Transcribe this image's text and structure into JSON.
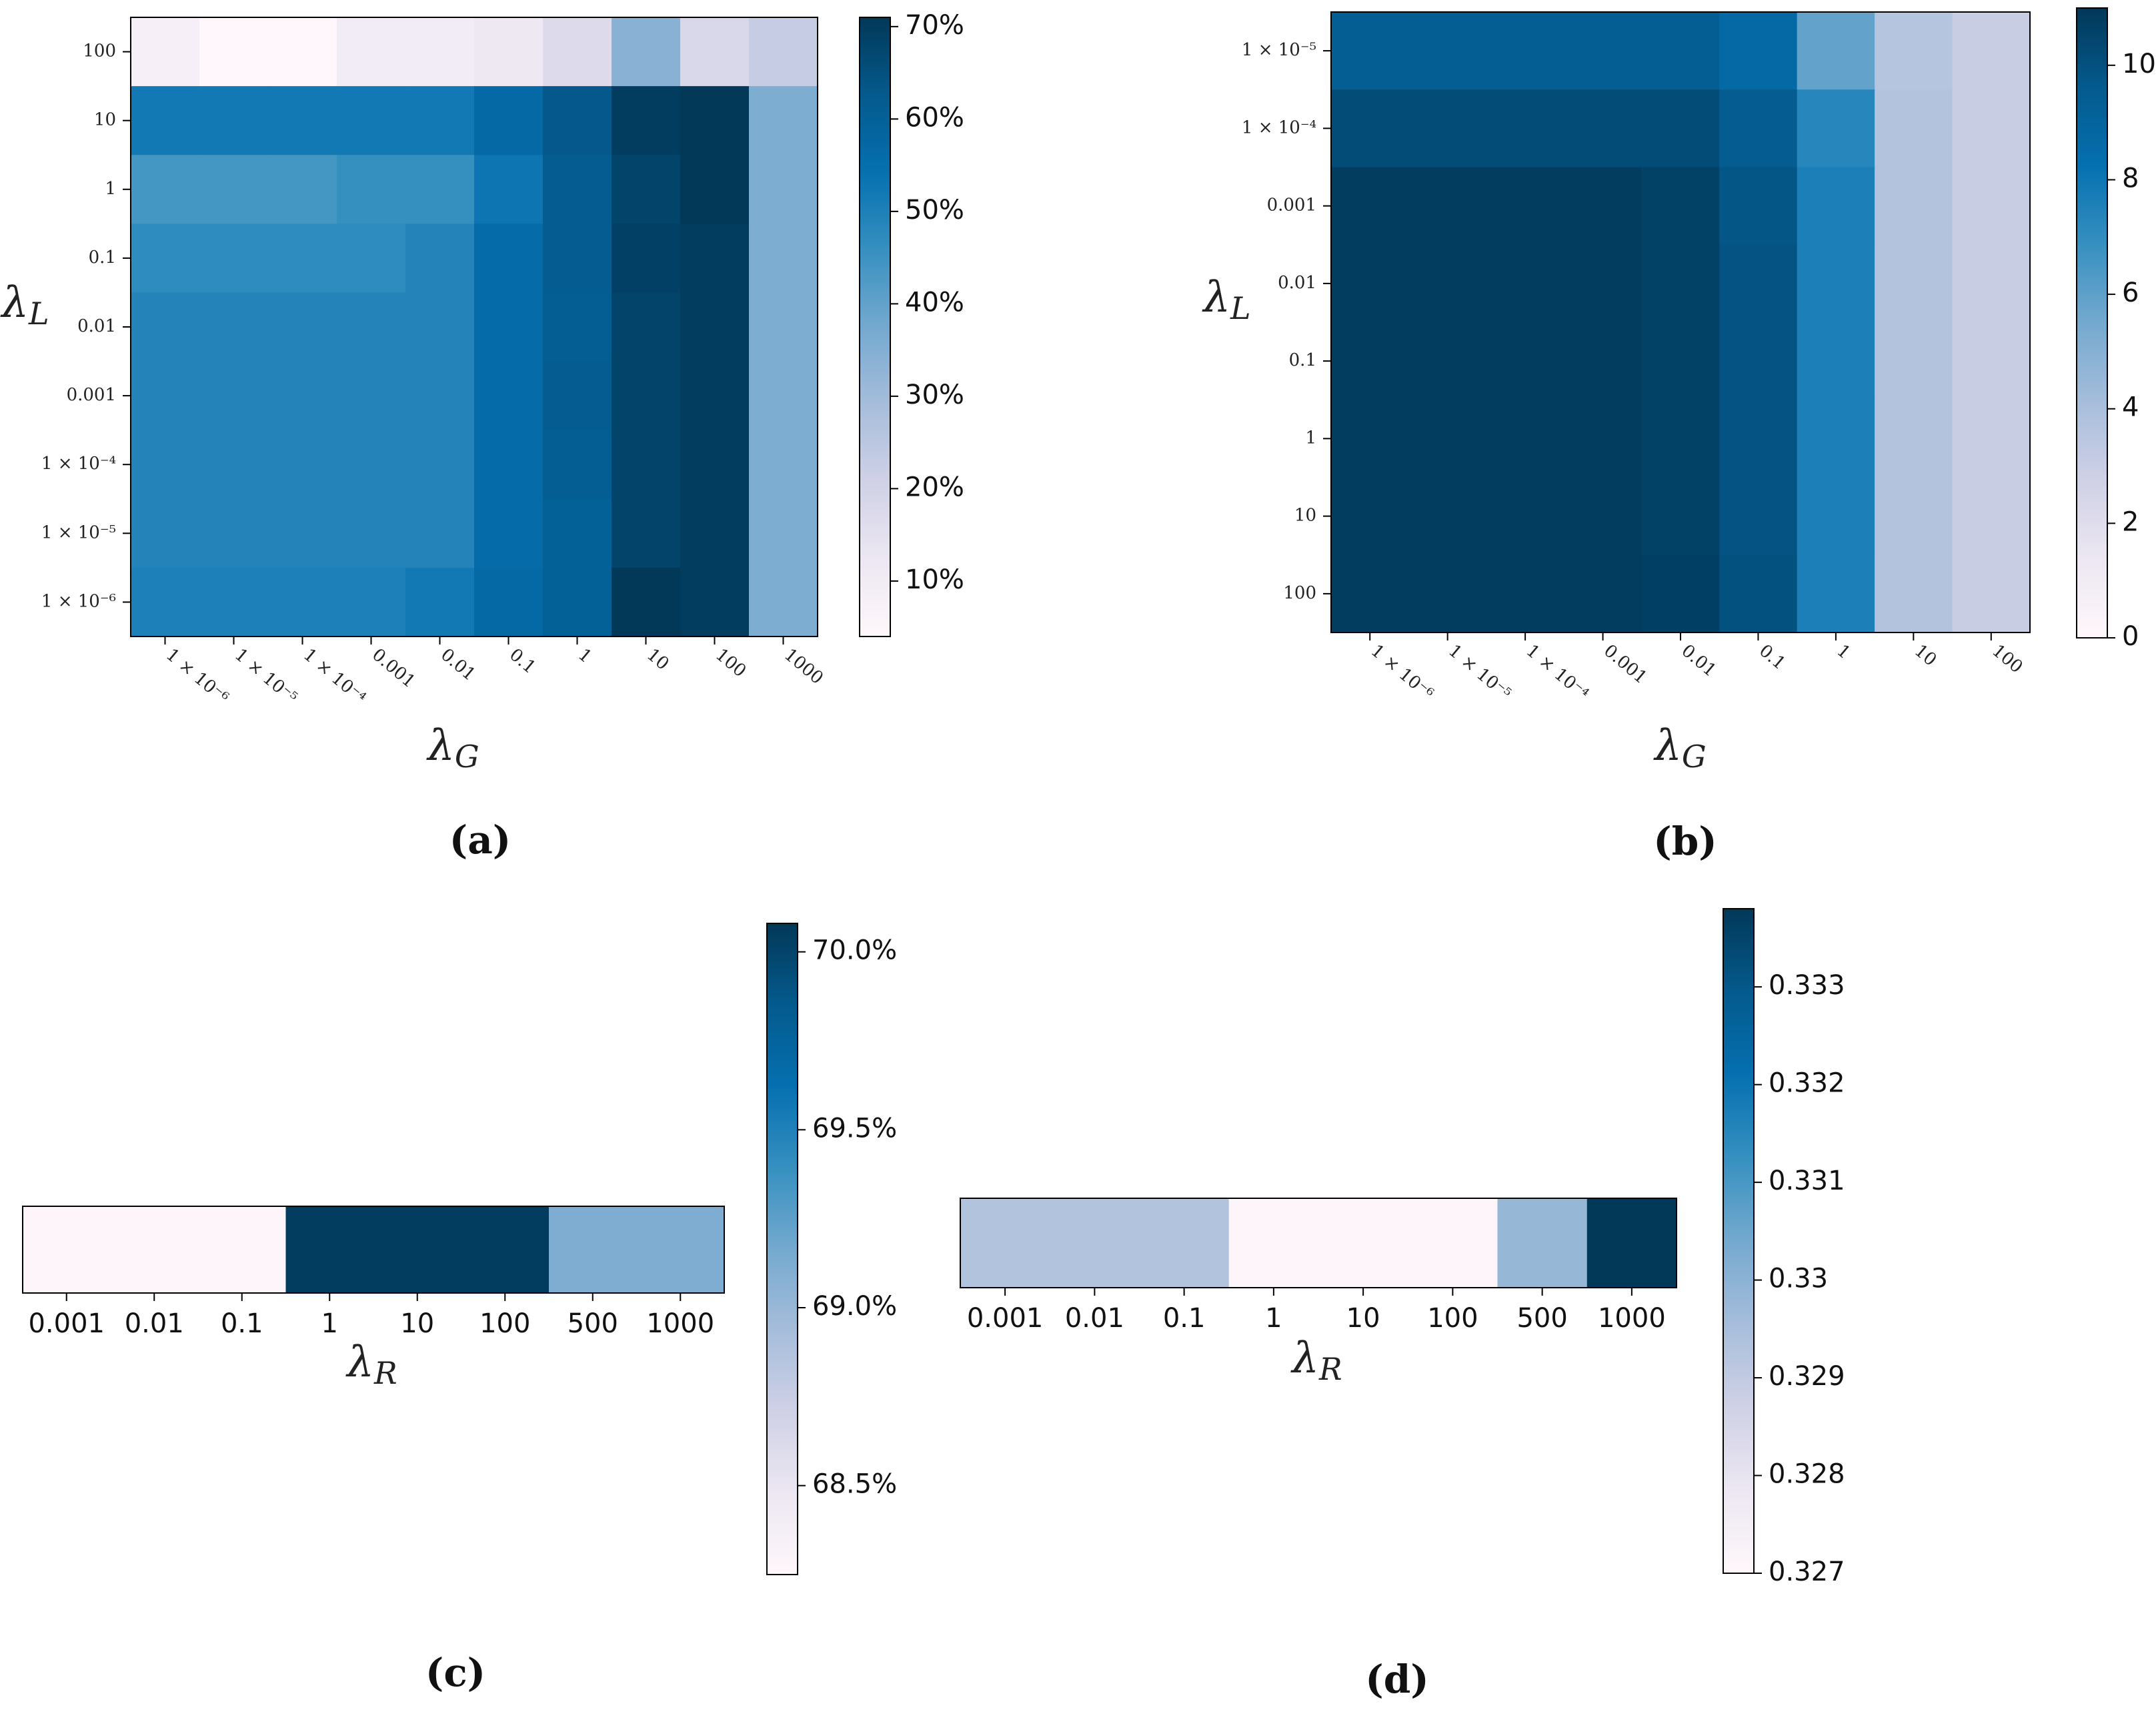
{
  "colormap": [
    "#fff7fb",
    "#ece7f2",
    "#d0d1e6",
    "#a6bddb",
    "#74a9cf",
    "#3690c0",
    "#0570b0",
    "#045a8d",
    "#023858"
  ],
  "chart_data": [
    {
      "id": "a",
      "type": "heatmap",
      "caption": "(a)",
      "xlabel": "λ",
      "xlabel_sub": "G",
      "ylabel": "λ",
      "ylabel_sub": "L",
      "x_categories": [
        "1 × 10⁻⁶",
        "1 × 10⁻⁵",
        "1 × 10⁻⁴",
        "0.001",
        "0.01",
        "0.1",
        "1",
        "10",
        "100",
        "1000"
      ],
      "y_categories": [
        "100",
        "10",
        "1",
        "0.1",
        "0.01",
        "0.001",
        "1 × 10⁻⁴",
        "1 × 10⁻⁵",
        "1 × 10⁻⁶"
      ],
      "values": [
        [
          8,
          4,
          4,
          10,
          10,
          12,
          17,
          34,
          18,
          23
        ],
        [
          52,
          52,
          52,
          52,
          52,
          57,
          63,
          70,
          71,
          36
        ],
        [
          44,
          44,
          44,
          46,
          46,
          53,
          62,
          68,
          71,
          36
        ],
        [
          47,
          47,
          47,
          47,
          49,
          56,
          62,
          69,
          70,
          36
        ],
        [
          49,
          49,
          49,
          49,
          49,
          56,
          61,
          68,
          70,
          36
        ],
        [
          49,
          49,
          49,
          49,
          49,
          56,
          62,
          68,
          70,
          36
        ],
        [
          49,
          49,
          49,
          49,
          49,
          56,
          61,
          68,
          70,
          36
        ],
        [
          49,
          49,
          49,
          49,
          49,
          56,
          60,
          68,
          70,
          36
        ],
        [
          50,
          50,
          50,
          50,
          52,
          57,
          60,
          71,
          70,
          36
        ]
      ],
      "vmin": 4,
      "vmax": 71,
      "colorbar_ticks": [
        10,
        20,
        30,
        40,
        50,
        60,
        70
      ],
      "colorbar_labels": [
        "10%",
        "20%",
        "30%",
        "40%",
        "50%",
        "60%",
        "70%"
      ]
    },
    {
      "id": "b",
      "type": "heatmap",
      "caption": "(b)",
      "xlabel": "λ",
      "xlabel_sub": "G",
      "ylabel": "λ",
      "ylabel_sub": "L",
      "x_categories": [
        "1 × 10⁻⁶",
        "1 × 10⁻⁵",
        "1 × 10⁻⁴",
        "0.001",
        "0.01",
        "0.1",
        "1",
        "10",
        "100"
      ],
      "y_categories": [
        "1 × 10⁻⁵",
        "1 × 10⁻⁴",
        "0.001",
        "0.01",
        "0.1",
        "1",
        "10",
        "100"
      ],
      "values": [
        [
          9.4,
          9.4,
          9.4,
          9.4,
          9.4,
          8.7,
          5.9,
          3.6,
          3.0
        ],
        [
          10.2,
          10.2,
          10.2,
          10.2,
          10.2,
          9.5,
          7.3,
          3.7,
          3.0
        ],
        [
          10.8,
          10.8,
          10.8,
          10.8,
          10.6,
          9.8,
          7.6,
          3.7,
          3.0
        ],
        [
          10.8,
          10.8,
          10.8,
          10.8,
          10.6,
          9.9,
          7.6,
          3.7,
          3.0
        ],
        [
          10.8,
          10.8,
          10.8,
          10.8,
          10.6,
          9.9,
          7.6,
          3.7,
          3.0
        ],
        [
          10.8,
          10.8,
          10.8,
          10.8,
          10.6,
          9.9,
          7.6,
          3.7,
          3.0
        ],
        [
          10.8,
          10.8,
          10.8,
          10.8,
          10.6,
          9.9,
          7.6,
          3.7,
          3.0
        ],
        [
          10.8,
          10.8,
          10.8,
          10.8,
          10.7,
          10.0,
          7.6,
          3.7,
          3.0
        ]
      ],
      "vmin": 0,
      "vmax": 11,
      "colorbar_ticks": [
        0,
        2,
        4,
        6,
        8,
        10
      ],
      "colorbar_labels": [
        "0",
        "2",
        "4",
        "6",
        "8",
        "10"
      ]
    },
    {
      "id": "c",
      "type": "heatmap",
      "caption": "(c)",
      "xlabel": "λ",
      "xlabel_sub": "R",
      "x_categories": [
        "0.001",
        "0.01",
        "0.1",
        "1",
        "10",
        "100",
        "500",
        "1000"
      ],
      "values": [
        68.28,
        68.28,
        68.28,
        70.05,
        70.05,
        70.05,
        69.12,
        69.12
      ],
      "vmin": 68.25,
      "vmax": 70.08,
      "colorbar_ticks": [
        68.5,
        69.0,
        69.5,
        70.0
      ],
      "colorbar_labels": [
        "68.5%",
        "69.0%",
        "69.5%",
        "70.0%"
      ]
    },
    {
      "id": "d",
      "type": "heatmap",
      "caption": "(d)",
      "xlabel": "λ",
      "xlabel_sub": "R",
      "x_categories": [
        "0.001",
        "0.01",
        "0.1",
        "1",
        "10",
        "100",
        "500",
        "1000"
      ],
      "values": [
        0.3293,
        0.3293,
        0.3293,
        0.3271,
        0.3271,
        0.3271,
        0.3298,
        0.3338
      ],
      "vmin": 0.327,
      "vmax": 0.3338,
      "colorbar_ticks": [
        0.327,
        0.328,
        0.329,
        0.33,
        0.331,
        0.332,
        0.333
      ],
      "colorbar_labels": [
        "0.327",
        "0.328",
        "0.329",
        "0.33",
        "0.331",
        "0.332",
        "0.333"
      ]
    }
  ]
}
